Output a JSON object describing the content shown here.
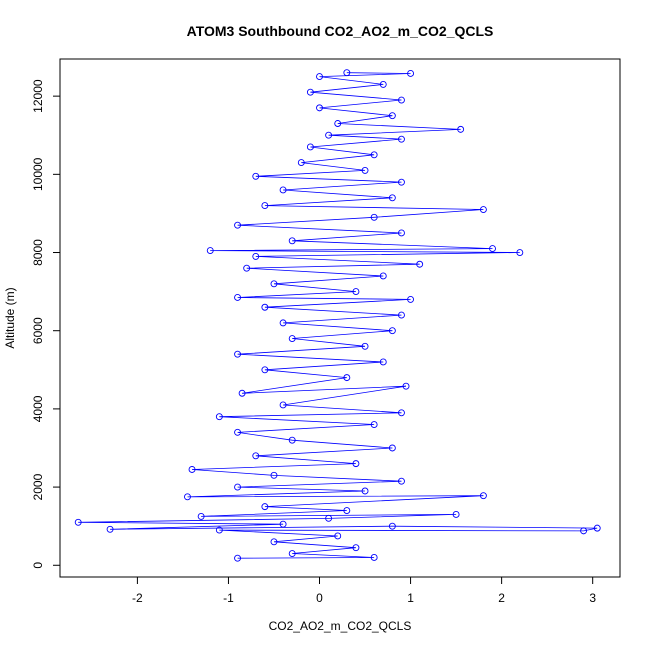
{
  "chart_data": {
    "type": "line",
    "title": "ATOM3 Southbound CO2_AO2_m_CO2_QCLS",
    "xlabel": "CO2_AO2_m_CO2_QCLS",
    "ylabel": "Altitude (m)",
    "xlim": [
      -2.85,
      3.3
    ],
    "ylim": [
      -300,
      12950
    ],
    "x_ticks": [
      -2,
      -1,
      0,
      1,
      2,
      3
    ],
    "x_tick_labels": [
      "-2",
      "-1",
      "0",
      "1",
      "2",
      "3"
    ],
    "y_ticks": [
      0,
      2000,
      4000,
      6000,
      8000,
      10000,
      12000
    ],
    "y_tick_labels": [
      "0",
      "2000",
      "4000",
      "6000",
      "8000",
      "10000",
      "12000"
    ],
    "grid": false,
    "series": [
      {
        "color": "#0000ff",
        "marker": "open-circle",
        "line": true,
        "points": [
          [
            -0.9,
            180
          ],
          [
            0.6,
            200
          ],
          [
            -0.3,
            300
          ],
          [
            0.4,
            450
          ],
          [
            -0.5,
            600
          ],
          [
            0.2,
            750
          ],
          [
            -1.1,
            900
          ],
          [
            2.9,
            880
          ],
          [
            3.05,
            950
          ],
          [
            0.8,
            1000
          ],
          [
            -2.3,
            920
          ],
          [
            -0.4,
            1050
          ],
          [
            -2.65,
            1100
          ],
          [
            0.1,
            1200
          ],
          [
            1.5,
            1300
          ],
          [
            -1.3,
            1250
          ],
          [
            0.3,
            1400
          ],
          [
            -0.6,
            1500
          ],
          [
            1.8,
            1780
          ],
          [
            -1.45,
            1750
          ],
          [
            0.5,
            1900
          ],
          [
            -0.9,
            2000
          ],
          [
            0.9,
            2150
          ],
          [
            -0.5,
            2300
          ],
          [
            -1.4,
            2450
          ],
          [
            0.4,
            2600
          ],
          [
            -0.7,
            2800
          ],
          [
            0.8,
            3000
          ],
          [
            -0.3,
            3200
          ],
          [
            -0.9,
            3400
          ],
          [
            0.6,
            3600
          ],
          [
            -1.1,
            3800
          ],
          [
            0.9,
            3900
          ],
          [
            -0.4,
            4100
          ],
          [
            0.95,
            4580
          ],
          [
            -0.85,
            4400
          ],
          [
            0.3,
            4800
          ],
          [
            -0.6,
            5000
          ],
          [
            0.7,
            5200
          ],
          [
            -0.9,
            5400
          ],
          [
            0.5,
            5600
          ],
          [
            -0.3,
            5800
          ],
          [
            0.8,
            6000
          ],
          [
            -0.4,
            6200
          ],
          [
            0.9,
            6400
          ],
          [
            -0.6,
            6600
          ],
          [
            1.0,
            6800
          ],
          [
            -0.9,
            6850
          ],
          [
            0.4,
            7000
          ],
          [
            -0.5,
            7200
          ],
          [
            0.7,
            7400
          ],
          [
            -0.8,
            7600
          ],
          [
            1.1,
            7700
          ],
          [
            -0.7,
            7900
          ],
          [
            2.2,
            8000
          ],
          [
            -1.2,
            8050
          ],
          [
            1.9,
            8100
          ],
          [
            -0.3,
            8300
          ],
          [
            0.9,
            8500
          ],
          [
            -0.9,
            8700
          ],
          [
            0.6,
            8900
          ],
          [
            1.8,
            9100
          ],
          [
            -0.6,
            9200
          ],
          [
            0.8,
            9400
          ],
          [
            -0.4,
            9600
          ],
          [
            0.9,
            9800
          ],
          [
            -0.7,
            9950
          ],
          [
            0.5,
            10100
          ],
          [
            -0.2,
            10300
          ],
          [
            0.6,
            10500
          ],
          [
            -0.1,
            10700
          ],
          [
            0.9,
            10900
          ],
          [
            0.1,
            11000
          ],
          [
            1.55,
            11150
          ],
          [
            0.2,
            11300
          ],
          [
            0.8,
            11500
          ],
          [
            0.0,
            11700
          ],
          [
            0.9,
            11900
          ],
          [
            -0.1,
            12100
          ],
          [
            0.7,
            12300
          ],
          [
            0.0,
            12500
          ],
          [
            1.0,
            12580
          ],
          [
            0.3,
            12600
          ]
        ]
      }
    ]
  }
}
